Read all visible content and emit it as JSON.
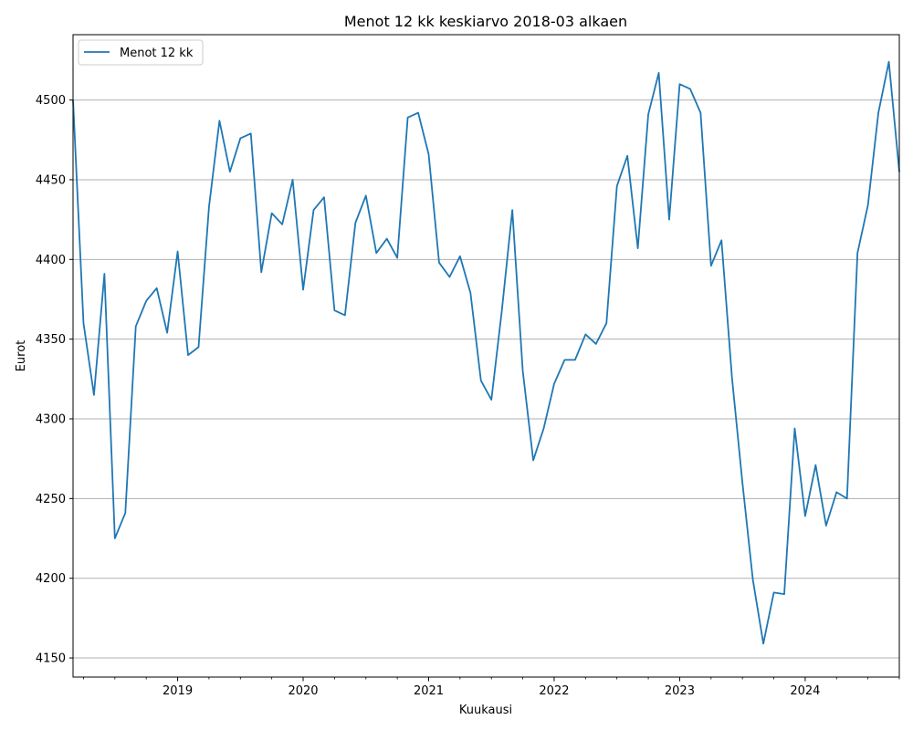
{
  "chart_data": {
    "type": "line",
    "title": "Menot 12 kk keskiarvo 2018-03 alkaen",
    "xlabel": "Kuukausi",
    "ylabel": "Eurot",
    "x_start": "2018-03",
    "xlim": [
      "2018-03",
      "2024-10"
    ],
    "ylim": [
      4138,
      4541
    ],
    "x_ticks": [
      "2019",
      "2020",
      "2021",
      "2022",
      "2023",
      "2024"
    ],
    "y_ticks": [
      4150,
      4200,
      4250,
      4300,
      4350,
      4400,
      4450,
      4500
    ],
    "grid": "horizontal",
    "legend": "upper-left",
    "colors": {
      "line": "#1f77b4",
      "grid": "#b0b0b0"
    },
    "x": [
      "2018-03",
      "2018-04",
      "2018-05",
      "2018-06",
      "2018-07",
      "2018-08",
      "2018-09",
      "2018-10",
      "2018-11",
      "2018-12",
      "2019-01",
      "2019-02",
      "2019-03",
      "2019-04",
      "2019-05",
      "2019-06",
      "2019-07",
      "2019-08",
      "2019-09",
      "2019-10",
      "2019-11",
      "2019-12",
      "2020-01",
      "2020-02",
      "2020-03",
      "2020-04",
      "2020-05",
      "2020-06",
      "2020-07",
      "2020-08",
      "2020-09",
      "2020-10",
      "2020-11",
      "2020-12",
      "2021-01",
      "2021-02",
      "2021-03",
      "2021-04",
      "2021-05",
      "2021-06",
      "2021-07",
      "2021-08",
      "2021-09",
      "2021-10",
      "2021-11",
      "2021-12",
      "2022-01",
      "2022-02",
      "2022-03",
      "2022-04",
      "2022-05",
      "2022-06",
      "2022-07",
      "2022-08",
      "2022-09",
      "2022-10",
      "2022-11",
      "2022-12",
      "2023-01",
      "2023-02",
      "2023-03",
      "2023-04",
      "2023-05",
      "2023-06",
      "2023-07",
      "2023-08",
      "2023-09",
      "2023-10",
      "2023-11",
      "2023-12",
      "2024-01",
      "2024-02",
      "2024-03",
      "2024-04",
      "2024-05",
      "2024-06",
      "2024-07",
      "2024-08",
      "2024-09",
      "2024-10"
    ],
    "series": [
      {
        "name": "Menot 12 kk",
        "values": [
          4500,
          4360,
          4315,
          4391,
          4225,
          4241,
          4358,
          4374,
          4382,
          4354,
          4405,
          4340,
          4345,
          4433,
          4487,
          4455,
          4476,
          4479,
          4392,
          4429,
          4422,
          4450,
          4381,
          4431,
          4439,
          4368,
          4365,
          4423,
          4440,
          4404,
          4413,
          4401,
          4489,
          4492,
          4466,
          4398,
          4389,
          4402,
          4379,
          4324,
          4312,
          4368,
          4431,
          4330,
          4274,
          4294,
          4322,
          4337,
          4337,
          4353,
          4347,
          4360,
          4446,
          4465,
          4407,
          4491,
          4517,
          4425,
          4510,
          4507,
          4492,
          4396,
          4412,
          4326,
          4260,
          4199,
          4159,
          4191,
          4190,
          4294,
          4239,
          4271,
          4233,
          4254,
          4250,
          4404,
          4434,
          4492,
          4524,
          4455
        ]
      }
    ]
  }
}
